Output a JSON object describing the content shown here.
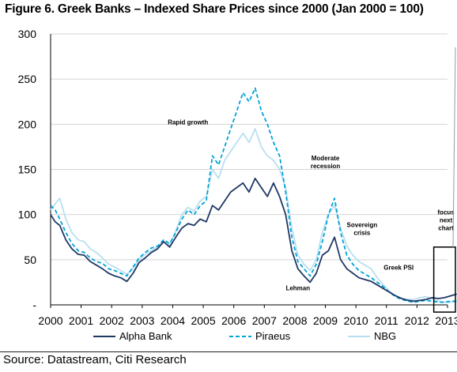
{
  "chart_data": {
    "type": "line",
    "title": "Figure 6. Greek Banks – Indexed Share Prices since 2000 (Jan 2000 = 100)",
    "source": "Source: Datastream, Citi Research",
    "xlabel": "",
    "ylabel": "",
    "xlim": [
      2000,
      2013
    ],
    "ylim": [
      0,
      300
    ],
    "yticks": [
      0,
      50,
      100,
      150,
      200,
      250,
      300
    ],
    "ytick_labels": [
      "-",
      "50",
      "100",
      "150",
      "200",
      "250",
      "300"
    ],
    "xticks": [
      2000,
      2001,
      2002,
      2003,
      2004,
      2005,
      2006,
      2007,
      2008,
      2009,
      2010,
      2011,
      2012,
      2013
    ],
    "xtick_labels": [
      "2000",
      "2001",
      "2002",
      "2003",
      "2004",
      "2005",
      "2006",
      "2007",
      "2008",
      "2009",
      "2010",
      "2011",
      "2012",
      "2013"
    ],
    "grid": true,
    "legend": "bottom",
    "annotations": [
      {
        "lines": [
          "Rapid growth"
        ],
        "x": 2004.5,
        "y": 200
      },
      {
        "lines": [
          "Moderate",
          "recession"
        ],
        "x": 2009.0,
        "y": 160
      },
      {
        "lines": [
          "Lehman"
        ],
        "x": 2008.1,
        "y": 16
      },
      {
        "lines": [
          "Sovereign",
          "crisis"
        ],
        "x": 2010.2,
        "y": 86
      },
      {
        "lines": [
          "Greek PSI"
        ],
        "x": 2011.4,
        "y": 39
      },
      {
        "lines": [
          "focus",
          "next",
          "chart"
        ],
        "x": 2012.95,
        "y": 100
      }
    ],
    "focus_box": {
      "x0": 2012.55,
      "x1": 2013.4,
      "y0": -8,
      "y1": 64
    },
    "series": [
      {
        "name": "Alpha Bank",
        "color": "#1f3864",
        "dash": "solid",
        "x": [
          2000.0,
          2000.15,
          2000.3,
          2000.5,
          2000.7,
          2000.9,
          2001.1,
          2001.3,
          2001.5,
          2001.7,
          2001.9,
          2002.1,
          2002.3,
          2002.5,
          2002.7,
          2002.9,
          2003.1,
          2003.3,
          2003.5,
          2003.7,
          2003.9,
          2004.1,
          2004.3,
          2004.5,
          2004.7,
          2004.9,
          2005.1,
          2005.3,
          2005.5,
          2005.7,
          2005.9,
          2006.1,
          2006.3,
          2006.5,
          2006.7,
          2006.9,
          2007.1,
          2007.3,
          2007.5,
          2007.7,
          2007.9,
          2008.1,
          2008.3,
          2008.5,
          2008.7,
          2008.9,
          2009.1,
          2009.3,
          2009.5,
          2009.7,
          2009.9,
          2010.1,
          2010.3,
          2010.5,
          2010.7,
          2010.9,
          2011.1,
          2011.3,
          2011.5,
          2011.7,
          2011.9,
          2012.1,
          2012.3,
          2012.5,
          2012.7,
          2012.9,
          2013.1,
          2013.3
        ],
        "y": [
          100,
          92,
          88,
          72,
          62,
          56,
          55,
          48,
          44,
          40,
          35,
          32,
          30,
          26,
          35,
          47,
          52,
          58,
          62,
          70,
          64,
          75,
          85,
          90,
          88,
          95,
          92,
          110,
          105,
          115,
          125,
          130,
          135,
          125,
          140,
          130,
          120,
          135,
          120,
          100,
          60,
          40,
          32,
          25,
          35,
          55,
          60,
          75,
          50,
          40,
          35,
          30,
          28,
          26,
          22,
          18,
          14,
          10,
          7,
          5,
          4,
          5,
          6,
          8,
          7,
          8,
          10,
          12
        ]
      },
      {
        "name": "Piraeus",
        "color": "#00a3d9",
        "dash": "dashed",
        "x": [
          2000.0,
          2000.15,
          2000.3,
          2000.5,
          2000.7,
          2000.9,
          2001.1,
          2001.3,
          2001.5,
          2001.7,
          2001.9,
          2002.1,
          2002.3,
          2002.5,
          2002.7,
          2002.9,
          2003.1,
          2003.3,
          2003.5,
          2003.7,
          2003.9,
          2004.1,
          2004.3,
          2004.5,
          2004.7,
          2004.9,
          2005.1,
          2005.3,
          2005.5,
          2005.7,
          2005.9,
          2006.1,
          2006.3,
          2006.5,
          2006.7,
          2006.9,
          2007.1,
          2007.3,
          2007.5,
          2007.7,
          2007.9,
          2008.1,
          2008.3,
          2008.5,
          2008.7,
          2008.9,
          2009.1,
          2009.3,
          2009.5,
          2009.7,
          2009.9,
          2010.1,
          2010.3,
          2010.5,
          2010.7,
          2010.9,
          2011.1,
          2011.3,
          2011.5,
          2011.7,
          2011.9,
          2012.1,
          2012.3,
          2012.5,
          2012.7,
          2012.9,
          2013.1,
          2013.3
        ],
        "y": [
          110,
          105,
          95,
          80,
          68,
          60,
          58,
          52,
          48,
          46,
          40,
          38,
          35,
          32,
          42,
          52,
          58,
          63,
          65,
          72,
          68,
          80,
          95,
          105,
          100,
          110,
          115,
          165,
          155,
          175,
          195,
          215,
          235,
          225,
          240,
          215,
          200,
          180,
          165,
          125,
          75,
          48,
          40,
          32,
          45,
          70,
          100,
          118,
          80,
          55,
          45,
          38,
          34,
          30,
          25,
          20,
          14,
          9,
          6,
          4,
          3,
          4,
          5,
          4,
          3,
          3,
          4,
          4
        ]
      },
      {
        "name": "NBG",
        "color": "#b8dff0",
        "dash": "solid",
        "x": [
          2000.0,
          2000.15,
          2000.3,
          2000.5,
          2000.7,
          2000.9,
          2001.1,
          2001.3,
          2001.5,
          2001.7,
          2001.9,
          2002.1,
          2002.3,
          2002.5,
          2002.7,
          2002.9,
          2003.1,
          2003.3,
          2003.5,
          2003.7,
          2003.9,
          2004.1,
          2004.3,
          2004.5,
          2004.7,
          2004.9,
          2005.1,
          2005.3,
          2005.5,
          2005.7,
          2005.9,
          2006.1,
          2006.3,
          2006.5,
          2006.7,
          2006.9,
          2007.1,
          2007.3,
          2007.5,
          2007.7,
          2007.9,
          2008.1,
          2008.3,
          2008.5,
          2008.7,
          2008.9,
          2009.1,
          2009.3,
          2009.5,
          2009.7,
          2009.9,
          2010.1,
          2010.3,
          2010.5,
          2010.7,
          2010.9,
          2011.1,
          2011.3,
          2011.5,
          2011.7,
          2011.9,
          2012.1,
          2012.3,
          2012.5,
          2012.7,
          2012.9,
          2013.1,
          2013.3
        ],
        "y": [
          105,
          112,
          118,
          95,
          80,
          72,
          70,
          62,
          58,
          52,
          45,
          42,
          38,
          34,
          40,
          50,
          56,
          60,
          64,
          70,
          66,
          82,
          100,
          108,
          104,
          115,
          120,
          150,
          140,
          160,
          170,
          180,
          190,
          180,
          195,
          175,
          165,
          160,
          150,
          130,
          85,
          55,
          45,
          38,
          50,
          80,
          100,
          110,
          85,
          65,
          55,
          48,
          44,
          40,
          30,
          22,
          15,
          10,
          7,
          6,
          6,
          8,
          9,
          7,
          4,
          3,
          3,
          4
        ]
      }
    ]
  }
}
